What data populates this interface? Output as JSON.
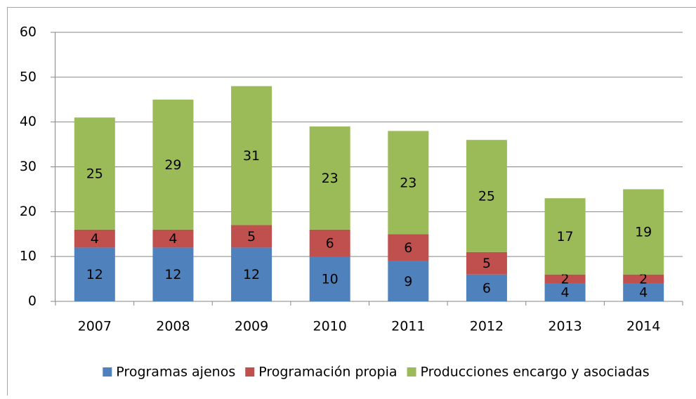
{
  "chart_data": {
    "type": "stacked-bar",
    "categories": [
      "2007",
      "2008",
      "2009",
      "2010",
      "2011",
      "2012",
      "2013",
      "2014"
    ],
    "series": [
      {
        "name": "Programas ajenos",
        "color": "#4f81bd",
        "values": [
          12,
          12,
          12,
          10,
          9,
          6,
          4,
          4
        ]
      },
      {
        "name": "Programación propia",
        "color": "#c0504d",
        "values": [
          4,
          4,
          5,
          6,
          6,
          5,
          2,
          2
        ]
      },
      {
        "name": "Producciones encargo y asociadas",
        "color": "#9bbb59",
        "values": [
          25,
          29,
          31,
          23,
          23,
          25,
          17,
          19
        ]
      }
    ],
    "ylim": [
      0,
      60
    ],
    "yticks": [
      0,
      10,
      20,
      30,
      40,
      50,
      60
    ],
    "grid": true,
    "legend": "bottom"
  }
}
